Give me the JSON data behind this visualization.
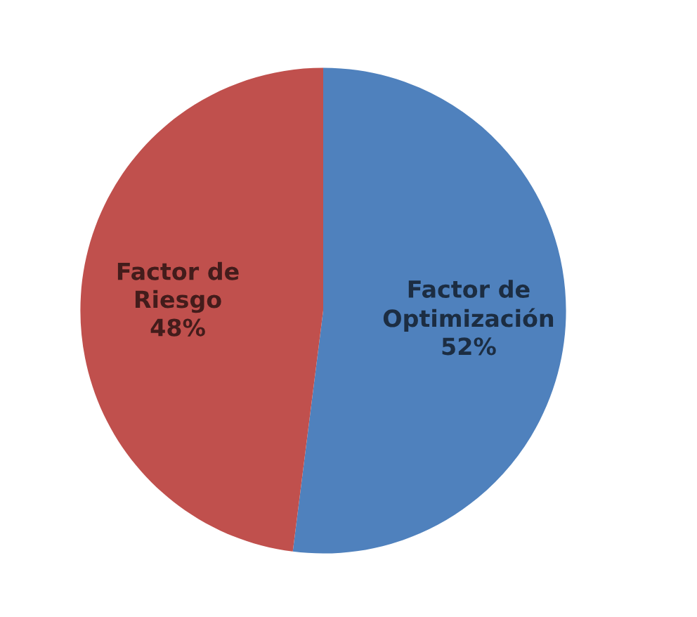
{
  "chart_data": {
    "type": "pie",
    "categories": [
      "Factor de Optimización",
      "Factor de Riesgo"
    ],
    "values": [
      52,
      48
    ],
    "colors": [
      "#4f81bd",
      "#c0504d"
    ],
    "value_labels": [
      "52%",
      "48%"
    ]
  }
}
